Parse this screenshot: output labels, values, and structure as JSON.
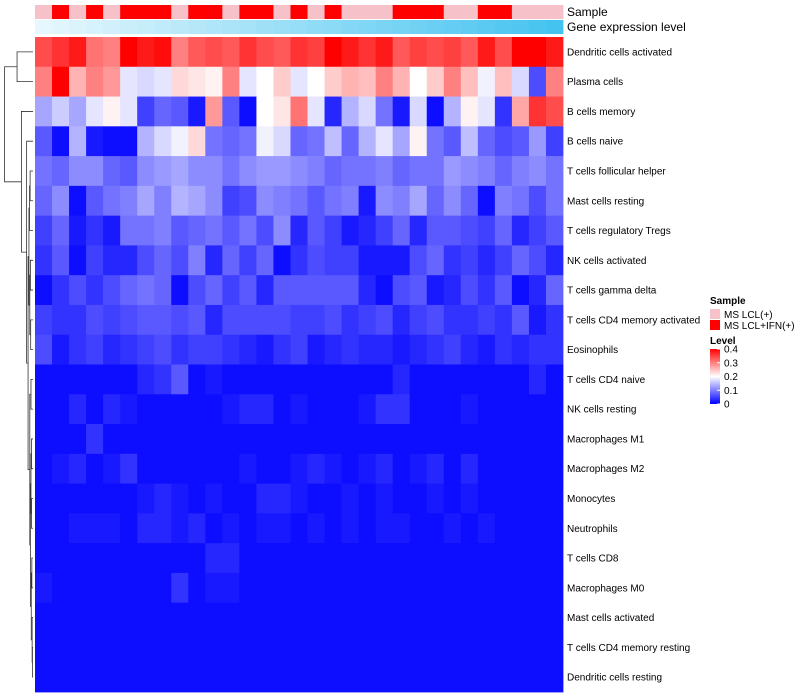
{
  "chart_data": {
    "type": "heatmap",
    "title": "",
    "rows": [
      "Dendritic cells activated",
      "Plasma cells",
      "B cells memory",
      "B cells naive",
      "T cells follicular helper",
      "Mast cells resting",
      "T cells regulatory  Tregs",
      "NK cells activated",
      "T cells gamma delta",
      "T cells CD4 memory activated",
      "Eosinophils",
      "T cells CD4 naive",
      "NK cells resting",
      "Macrophages M1",
      "Macrophages M2",
      "Monocytes",
      "Neutrophils",
      "T cells CD8",
      "Macrophages M0",
      "Mast cells activated",
      "T cells CD4 memory resting",
      "Dendritic cells resting"
    ],
    "column_count": 31,
    "annotations": {
      "sample": {
        "label": "Sample",
        "values": [
          0,
          1,
          0,
          1,
          0,
          1,
          1,
          1,
          0,
          1,
          1,
          0,
          1,
          1,
          0,
          1,
          0,
          1,
          0,
          0,
          0,
          1,
          1,
          1,
          0,
          0,
          1,
          1,
          0,
          0,
          0
        ]
      },
      "gene_expression": {
        "label": "Gene expression level",
        "values": [
          0,
          0.033,
          0.067,
          0.1,
          0.133,
          0.167,
          0.2,
          0.233,
          0.267,
          0.3,
          0.333,
          0.367,
          0.4,
          0.433,
          0.467,
          0.5,
          0.533,
          0.567,
          0.6,
          0.633,
          0.667,
          0.7,
          0.733,
          0.767,
          0.8,
          0.833,
          0.867,
          0.9,
          0.933,
          0.967,
          1.0
        ]
      }
    },
    "values": [
      [
        0.34,
        0.36,
        0.38,
        0.31,
        0.3,
        0.4,
        0.38,
        0.39,
        0.3,
        0.33,
        0.34,
        0.33,
        0.36,
        0.34,
        0.33,
        0.36,
        0.35,
        0.4,
        0.38,
        0.36,
        0.38,
        0.33,
        0.35,
        0.34,
        0.35,
        0.33,
        0.38,
        0.34,
        0.4,
        0.4,
        0.38
      ],
      [
        0.3,
        0.4,
        0.26,
        0.3,
        0.28,
        0.18,
        0.17,
        0.18,
        0.23,
        0.22,
        0.21,
        0.3,
        0.18,
        0.2,
        0.24,
        0.18,
        0.2,
        0.24,
        0.26,
        0.25,
        0.3,
        0.26,
        0.2,
        0.24,
        0.3,
        0.25,
        0.19,
        0.25,
        0.17,
        0.06,
        0.3
      ],
      [
        0.13,
        0.16,
        0.13,
        0.18,
        0.21,
        0.18,
        0.05,
        0.08,
        0.07,
        0.02,
        0.28,
        0.07,
        0.01,
        0.2,
        0.22,
        0.31,
        0.18,
        0.03,
        0.14,
        0.17,
        0.09,
        0.02,
        0.17,
        0.01,
        0.14,
        0.21,
        0.18,
        0.04,
        0.27,
        0.36,
        0.34
      ],
      [
        0.07,
        0.01,
        0.14,
        0.02,
        0.01,
        0.01,
        0.14,
        0.17,
        0.19,
        0.23,
        0.09,
        0.08,
        0.09,
        0.19,
        0.17,
        0.08,
        0.09,
        0.15,
        0.08,
        0.14,
        0.18,
        0.13,
        0.21,
        0.09,
        0.07,
        0.15,
        0.08,
        0.06,
        0.07,
        0.12,
        0.05
      ],
      [
        0.09,
        0.08,
        0.11,
        0.11,
        0.08,
        0.07,
        0.11,
        0.12,
        0.13,
        0.11,
        0.11,
        0.09,
        0.11,
        0.12,
        0.12,
        0.11,
        0.1,
        0.08,
        0.09,
        0.09,
        0.1,
        0.08,
        0.09,
        0.09,
        0.12,
        0.11,
        0.1,
        0.08,
        0.1,
        0.11,
        0.09
      ],
      [
        0.08,
        0.11,
        0.01,
        0.07,
        0.09,
        0.1,
        0.13,
        0.1,
        0.14,
        0.13,
        0.11,
        0.05,
        0.06,
        0.11,
        0.1,
        0.09,
        0.07,
        0.09,
        0.1,
        0.02,
        0.11,
        0.1,
        0.13,
        0.08,
        0.11,
        0.08,
        0.01,
        0.1,
        0.09,
        0.06,
        0.09
      ],
      [
        0.05,
        0.08,
        0.02,
        0.04,
        0.02,
        0.09,
        0.09,
        0.1,
        0.07,
        0.08,
        0.09,
        0.07,
        0.09,
        0.06,
        0.11,
        0.03,
        0.07,
        0.05,
        0.02,
        0.03,
        0.05,
        0.08,
        0.03,
        0.07,
        0.07,
        0.06,
        0.05,
        0.08,
        0.03,
        0.05,
        0.07
      ],
      [
        0.04,
        0.07,
        0.01,
        0.05,
        0.03,
        0.03,
        0.06,
        0.08,
        0.06,
        0.1,
        0.03,
        0.08,
        0.05,
        0.08,
        0.01,
        0.04,
        0.06,
        0.05,
        0.05,
        0.02,
        0.02,
        0.02,
        0.06,
        0.08,
        0.04,
        0.05,
        0.03,
        0.05,
        0.08,
        0.06,
        0.03
      ],
      [
        0.01,
        0.04,
        0.06,
        0.04,
        0.06,
        0.08,
        0.09,
        0.08,
        0.01,
        0.06,
        0.08,
        0.05,
        0.07,
        0.03,
        0.07,
        0.07,
        0.07,
        0.07,
        0.07,
        0.03,
        0.01,
        0.06,
        0.07,
        0.02,
        0.03,
        0.06,
        0.04,
        0.07,
        0.01,
        0.03,
        0.08
      ],
      [
        0.05,
        0.04,
        0.04,
        0.06,
        0.05,
        0.06,
        0.07,
        0.07,
        0.06,
        0.07,
        0.03,
        0.06,
        0.06,
        0.06,
        0.06,
        0.05,
        0.05,
        0.06,
        0.04,
        0.05,
        0.06,
        0.03,
        0.05,
        0.06,
        0.04,
        0.04,
        0.05,
        0.04,
        0.07,
        0.02,
        0.04
      ],
      [
        0.06,
        0.02,
        0.04,
        0.05,
        0.03,
        0.04,
        0.05,
        0.06,
        0.04,
        0.05,
        0.05,
        0.04,
        0.03,
        0.02,
        0.04,
        0.05,
        0.02,
        0.03,
        0.04,
        0.03,
        0.03,
        0.02,
        0.03,
        0.04,
        0.05,
        0.03,
        0.02,
        0.04,
        0.03,
        0.04,
        0.04
      ],
      [
        0.01,
        0.01,
        0.01,
        0.01,
        0.01,
        0.01,
        0.03,
        0.04,
        0.07,
        0.01,
        0.02,
        0.01,
        0.01,
        0.01,
        0.01,
        0.01,
        0.01,
        0.01,
        0.01,
        0.01,
        0.01,
        0.03,
        0.01,
        0.01,
        0.01,
        0.01,
        0.01,
        0.01,
        0.01,
        0.03,
        0.01
      ],
      [
        0.01,
        0.01,
        0.03,
        0.01,
        0.03,
        0.02,
        0.01,
        0.01,
        0.01,
        0.01,
        0.01,
        0.02,
        0.03,
        0.03,
        0.01,
        0.02,
        0.01,
        0.01,
        0.01,
        0.02,
        0.04,
        0.04,
        0.01,
        0.01,
        0.01,
        0.02,
        0.01,
        0.01,
        0.01,
        0.01,
        0.01
      ],
      [
        0.01,
        0.01,
        0.01,
        0.04,
        0.01,
        0.01,
        0.01,
        0.01,
        0.01,
        0.01,
        0.01,
        0.01,
        0.01,
        0.01,
        0.01,
        0.01,
        0.01,
        0.01,
        0.01,
        0.01,
        0.01,
        0.01,
        0.01,
        0.01,
        0.01,
        0.01,
        0.01,
        0.01,
        0.01,
        0.01,
        0.01
      ],
      [
        0.01,
        0.02,
        0.03,
        0.01,
        0.02,
        0.04,
        0.01,
        0.01,
        0.01,
        0.01,
        0.01,
        0.01,
        0.02,
        0.01,
        0.01,
        0.02,
        0.03,
        0.02,
        0.01,
        0.02,
        0.03,
        0.01,
        0.02,
        0.03,
        0.01,
        0.03,
        0.01,
        0.01,
        0.01,
        0.01,
        0.01
      ],
      [
        0.01,
        0.01,
        0.01,
        0.01,
        0.01,
        0.01,
        0.02,
        0.03,
        0.02,
        0.01,
        0.02,
        0.01,
        0.01,
        0.03,
        0.03,
        0.02,
        0.01,
        0.01,
        0.02,
        0.01,
        0.02,
        0.01,
        0.01,
        0.02,
        0.01,
        0.02,
        0.01,
        0.01,
        0.01,
        0.01,
        0.01
      ],
      [
        0.01,
        0.01,
        0.02,
        0.02,
        0.02,
        0.01,
        0.03,
        0.03,
        0.02,
        0.03,
        0.01,
        0.02,
        0.01,
        0.02,
        0.02,
        0.01,
        0.02,
        0.01,
        0.02,
        0.01,
        0.02,
        0.02,
        0.01,
        0.01,
        0.02,
        0.01,
        0.02,
        0.01,
        0.01,
        0.01,
        0.01
      ],
      [
        0.01,
        0.01,
        0.01,
        0.01,
        0.01,
        0.01,
        0.01,
        0.01,
        0.01,
        0.01,
        0.03,
        0.03,
        0.01,
        0.01,
        0.01,
        0.01,
        0.01,
        0.01,
        0.01,
        0.01,
        0.01,
        0.01,
        0.01,
        0.01,
        0.01,
        0.01,
        0.01,
        0.01,
        0.01,
        0.01,
        0.01
      ],
      [
        0.02,
        0.01,
        0.01,
        0.01,
        0.01,
        0.01,
        0.01,
        0.01,
        0.04,
        0.01,
        0.02,
        0.02,
        0.01,
        0.01,
        0.01,
        0.01,
        0.01,
        0.01,
        0.01,
        0.01,
        0.01,
        0.01,
        0.01,
        0.01,
        0.01,
        0.01,
        0.01,
        0.01,
        0.01,
        0.01,
        0.01
      ],
      [
        0.01,
        0.01,
        0.01,
        0.01,
        0.01,
        0.01,
        0.01,
        0.01,
        0.01,
        0.01,
        0.01,
        0.01,
        0.01,
        0.01,
        0.01,
        0.01,
        0.01,
        0.01,
        0.01,
        0.01,
        0.01,
        0.01,
        0.01,
        0.01,
        0.01,
        0.01,
        0.01,
        0.01,
        0.01,
        0.01,
        0.01
      ],
      [
        0.01,
        0.01,
        0.01,
        0.01,
        0.01,
        0.01,
        0.01,
        0.01,
        0.01,
        0.01,
        0.01,
        0.01,
        0.01,
        0.01,
        0.01,
        0.01,
        0.01,
        0.01,
        0.01,
        0.01,
        0.01,
        0.01,
        0.01,
        0.01,
        0.01,
        0.01,
        0.01,
        0.01,
        0.01,
        0.01,
        0.01
      ],
      [
        0.01,
        0.01,
        0.01,
        0.01,
        0.01,
        0.01,
        0.01,
        0.01,
        0.01,
        0.01,
        0.01,
        0.01,
        0.01,
        0.01,
        0.01,
        0.01,
        0.01,
        0.01,
        0.01,
        0.01,
        0.01,
        0.01,
        0.01,
        0.01,
        0.01,
        0.01,
        0.01,
        0.01,
        0.01,
        0.01,
        0.01
      ]
    ],
    "legend": {
      "sample_title": "Sample",
      "sample_entries": [
        {
          "label": "MS LCL(+)",
          "color": "#f7c1c9"
        },
        {
          "label": "MS LCL+IFN(+)",
          "color": "#ff0000"
        }
      ],
      "level_title": "Level",
      "level_ticks": [
        "0.4",
        "0.3",
        "0.2",
        "0.1",
        "0"
      ],
      "level_tick_values": [
        0.4,
        0.3,
        0.2,
        0.1,
        0
      ],
      "placement": "right"
    },
    "color_scale": {
      "low": "#0000ff",
      "mid": "#ffffff",
      "high": "#ff0000",
      "domain": [
        0,
        0.2,
        0.4
      ]
    },
    "gene_expression_colors": {
      "low": "#e6f7fd",
      "high": "#45c3f0"
    }
  }
}
